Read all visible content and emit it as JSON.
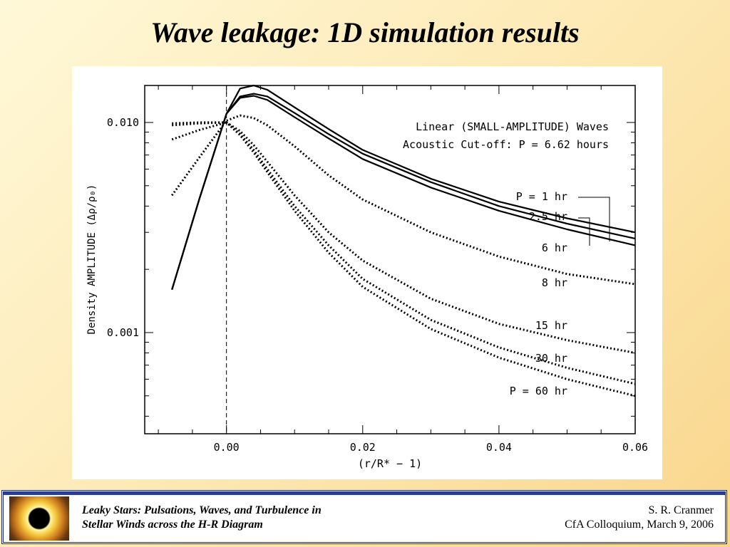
{
  "slide": {
    "title": "Wave leakage:  1D simulation results",
    "footer_left_line1": "Leaky Stars:  Pulsations, Waves, and Turbulence in",
    "footer_left_line2": "Stellar Winds across the H-R Diagram",
    "footer_right_line1": "S. R. Cranmer",
    "footer_right_line2": "CfA Colloquium,  March 9, 2006"
  },
  "chart_data": {
    "type": "line",
    "title_line1": "Linear (SMALL-AMPLITUDE) Waves",
    "title_line2": "Acoustic Cut-off:  P = 6.62 hours",
    "ylabel": "Density AMPLITUDE   (Δρ/ρ₀)",
    "xlabel": "(r/R* − 1)",
    "xlim": [
      -0.012,
      0.06
    ],
    "ylim": [
      0.00033,
      0.015
    ],
    "yscale": "log",
    "xticks": [
      "0.00",
      "0.02",
      "0.04",
      "0.06"
    ],
    "yticks": [
      "0.010",
      "0.001"
    ],
    "reference_line_x": 0.0,
    "series": [
      {
        "name": "P =   1 hr",
        "style": "solid",
        "x": [
          -0.008,
          -0.004,
          0.0,
          0.002,
          0.004,
          0.006,
          0.01,
          0.015,
          0.02,
          0.03,
          0.04,
          0.05,
          0.06
        ],
        "y": [
          0.0016,
          0.0043,
          0.011,
          0.0145,
          0.015,
          0.0143,
          0.0118,
          0.0093,
          0.0074,
          0.0054,
          0.0042,
          0.0035,
          0.003
        ]
      },
      {
        "name": "2.5 hr",
        "style": "solid",
        "x": [
          -0.008,
          -0.004,
          0.0,
          0.002,
          0.004,
          0.006,
          0.01,
          0.015,
          0.02,
          0.03,
          0.04,
          0.05,
          0.06
        ],
        "y": [
          0.0016,
          0.0043,
          0.011,
          0.0133,
          0.0137,
          0.0133,
          0.0111,
          0.0088,
          0.0071,
          0.0052,
          0.004,
          0.0033,
          0.0028
        ]
      },
      {
        "name": "6 hr",
        "style": "solid",
        "x": [
          -0.008,
          -0.004,
          0.0,
          0.002,
          0.004,
          0.006,
          0.01,
          0.015,
          0.02,
          0.03,
          0.04,
          0.05,
          0.06
        ],
        "y": [
          0.0016,
          0.0043,
          0.011,
          0.0131,
          0.0134,
          0.0128,
          0.0106,
          0.0084,
          0.0067,
          0.0049,
          0.0038,
          0.0031,
          0.0026
        ]
      },
      {
        "name": "8 hr",
        "style": "dotted",
        "x": [
          -0.008,
          -0.004,
          0.0,
          0.002,
          0.004,
          0.006,
          0.01,
          0.015,
          0.02,
          0.03,
          0.04,
          0.05,
          0.06
        ],
        "y": [
          0.0045,
          0.0068,
          0.0102,
          0.0108,
          0.0105,
          0.0097,
          0.0077,
          0.0056,
          0.0043,
          0.003,
          0.0023,
          0.0019,
          0.0017
        ]
      },
      {
        "name": "15 hr",
        "style": "dotted",
        "x": [
          -0.008,
          -0.004,
          0.0,
          0.002,
          0.004,
          0.006,
          0.01,
          0.015,
          0.02,
          0.03,
          0.04,
          0.05,
          0.06
        ],
        "y": [
          0.0083,
          0.0092,
          0.01,
          0.0091,
          0.0078,
          0.0065,
          0.0045,
          0.003,
          0.0022,
          0.00145,
          0.0011,
          0.00092,
          0.0008
        ]
      },
      {
        "name": "30 hr",
        "style": "dotted",
        "x": [
          -0.008,
          -0.004,
          0.0,
          0.002,
          0.004,
          0.006,
          0.01,
          0.015,
          0.02,
          0.03,
          0.04,
          0.05,
          0.06
        ],
        "y": [
          0.0097,
          0.0099,
          0.01,
          0.0088,
          0.0074,
          0.006,
          0.004,
          0.0026,
          0.0018,
          0.00115,
          0.00085,
          0.00068,
          0.00057
        ]
      },
      {
        "name": "P =  60 hr",
        "style": "dotted",
        "x": [
          -0.008,
          -0.004,
          0.0,
          0.002,
          0.004,
          0.006,
          0.01,
          0.015,
          0.02,
          0.03,
          0.04,
          0.05,
          0.06
        ],
        "y": [
          0.0099,
          0.01,
          0.01,
          0.0087,
          0.0072,
          0.0058,
          0.0038,
          0.0024,
          0.00165,
          0.00104,
          0.00076,
          0.0006,
          0.0005
        ]
      }
    ],
    "curve_labels": [
      {
        "text": "P =   1 hr",
        "series": 0
      },
      {
        "text": "2.5 hr",
        "series": 1
      },
      {
        "text": "6 hr",
        "series": 2
      },
      {
        "text": "8 hr",
        "series": 3
      },
      {
        "text": "15 hr",
        "series": 4
      },
      {
        "text": "30 hr",
        "series": 5
      },
      {
        "text": "P =  60 hr",
        "series": 6
      }
    ]
  }
}
